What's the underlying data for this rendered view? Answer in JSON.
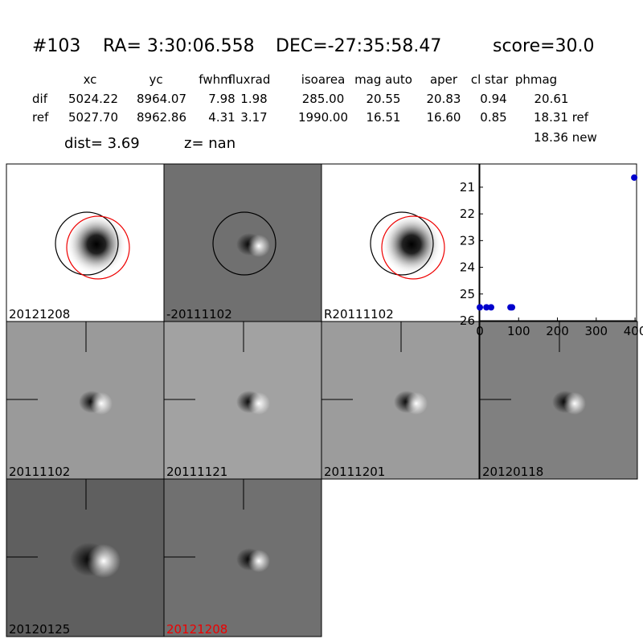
{
  "header": {
    "id": "#103",
    "ra": "RA= 3:30:06.558",
    "dec": "DEC=-27:35:58.47",
    "score": "score=30.0"
  },
  "table": {
    "columns": [
      "xc",
      "yc",
      "fwhm",
      "fluxrad",
      "isoarea",
      "mag auto",
      "aper",
      "cl star",
      "phmag"
    ],
    "rows": [
      [
        "dif",
        "5024.22",
        "8964.07",
        "7.98",
        "1.98",
        "285.00",
        "20.55",
        "20.83",
        "0.94",
        "20.61"
      ],
      [
        "ref",
        "5027.70",
        "8962.86",
        "4.31",
        "3.17",
        "1990.00",
        "16.51",
        "16.60",
        "0.85",
        "18.31 ref"
      ]
    ],
    "extra": "18.36 new"
  },
  "dist": "dist=  3.69",
  "z": "z=   nan",
  "panels": [
    "20121208",
    "-20111102",
    "R20111102",
    "20111102",
    "20111121",
    "20111201",
    "20120118",
    "20120125",
    "20121208"
  ],
  "chart_data": {
    "type": "scatter",
    "x": [
      0,
      17,
      29,
      79,
      83,
      398
    ],
    "y": [
      25.5,
      25.5,
      25.5,
      25.5,
      25.5,
      20.64
    ],
    "color": "#0000cc",
    "xlim": [
      0,
      404
    ],
    "ylim": [
      26,
      20.13
    ],
    "xticks": [
      0,
      100,
      200,
      300,
      400
    ],
    "yticks": [
      21,
      22,
      23,
      24,
      25,
      26
    ]
  }
}
